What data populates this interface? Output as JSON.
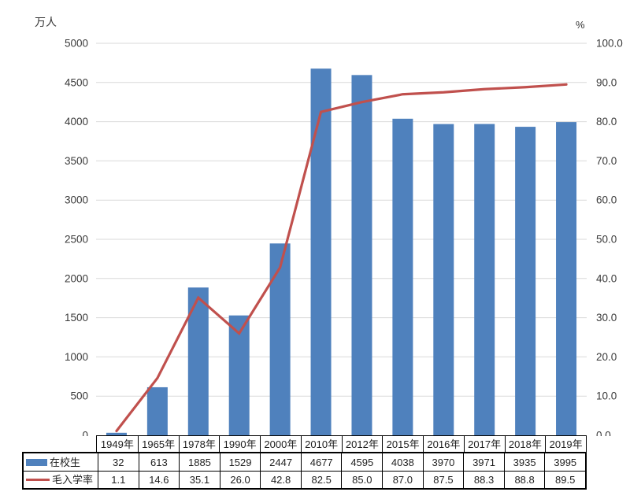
{
  "chart_data": {
    "type": "bar+line combo",
    "categories": [
      "1949年",
      "1965年",
      "1978年",
      "1990年",
      "2000年",
      "2010年",
      "2012年",
      "2015年",
      "2016年",
      "2017年",
      "2018年",
      "2019年"
    ],
    "series": [
      {
        "name": "在校生",
        "type": "bar",
        "axis": "left",
        "color": "#4F81BD",
        "format": "int",
        "values": [
          32,
          613,
          1885,
          1529,
          2447,
          4677,
          4595,
          4038,
          3970,
          3971,
          3935,
          3995
        ]
      },
      {
        "name": "毛入学率",
        "type": "line",
        "axis": "right",
        "color": "#C0504D",
        "format": "1dp",
        "values": [
          1.1,
          14.6,
          35.1,
          26.0,
          42.8,
          82.5,
          85.0,
          87.0,
          87.5,
          88.3,
          88.8,
          89.5
        ]
      }
    ],
    "left_axis": {
      "unit": "万人",
      "min": 0,
      "max": 5000,
      "step": 500
    },
    "right_axis": {
      "unit": "%",
      "min": 0,
      "max": 100,
      "step": 10
    },
    "grid": true,
    "gridline_color": "#D9D9D9",
    "legend_position": "table-left"
  }
}
